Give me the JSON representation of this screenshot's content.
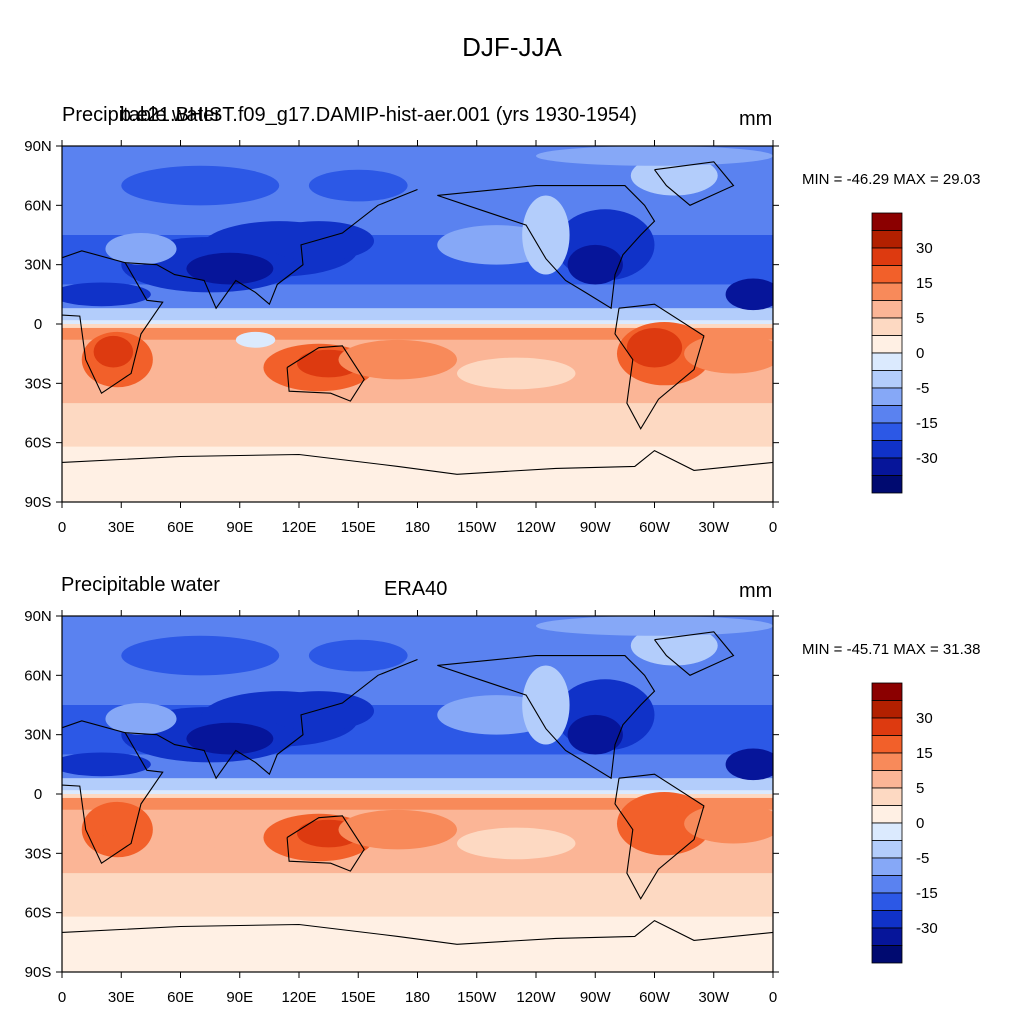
{
  "figure": {
    "title": "DJF-JJA"
  },
  "panels": [
    {
      "left_string": "Precipitable water",
      "center_string": "b.e21.BHIST.f09_g17.DAMIP-hist-aer.001 (yrs 1930-1954)",
      "right_string": "mm",
      "min_max": "MIN = -46.29 MAX =  29.03"
    },
    {
      "left_string": "Precipitable water",
      "center_string": "ERA40",
      "right_string": "mm",
      "min_max": "MIN = -45.71 MAX =  31.38"
    }
  ],
  "axes": {
    "lat_labels": [
      "90N",
      "60N",
      "30N",
      "0",
      "30S",
      "60S",
      "90S"
    ],
    "lon_labels": [
      "0",
      "30E",
      "60E",
      "90E",
      "120E",
      "150E",
      "180",
      "150W",
      "120W",
      "90W",
      "60W",
      "30W",
      "0"
    ]
  },
  "colorbar": {
    "labels": [
      "30",
      "15",
      "5",
      "0",
      "-5",
      "-15",
      "-30"
    ],
    "colors": [
      "#8b0000",
      "#b22000",
      "#dd3a10",
      "#f2602a",
      "#f88a5a",
      "#fbb596",
      "#fdd9c2",
      "#fff0e4",
      "#dbeafe",
      "#b3cdfb",
      "#86a8f7",
      "#5a82f0",
      "#2c58e6",
      "#1032c8",
      "#06159a",
      "#000a70"
    ]
  },
  "chart_data": {
    "type": "heatmap",
    "title": "DJF-JJA",
    "field": "Precipitable water",
    "units": "mm",
    "projection": "cylindrical equidistant",
    "lon_range": [
      0,
      360
    ],
    "lat_range": [
      -90,
      90
    ],
    "contour_levels": [
      -30,
      -15,
      -5,
      0,
      5,
      15,
      30
    ],
    "panels": [
      {
        "dataset": "b.e21.BHIST.f09_g17.DAMIP-hist-aer.001 (yrs 1930-1954)",
        "min": -46.29,
        "max": 29.03
      },
      {
        "dataset": "ERA40",
        "min": -45.71,
        "max": 31.38
      }
    ]
  }
}
